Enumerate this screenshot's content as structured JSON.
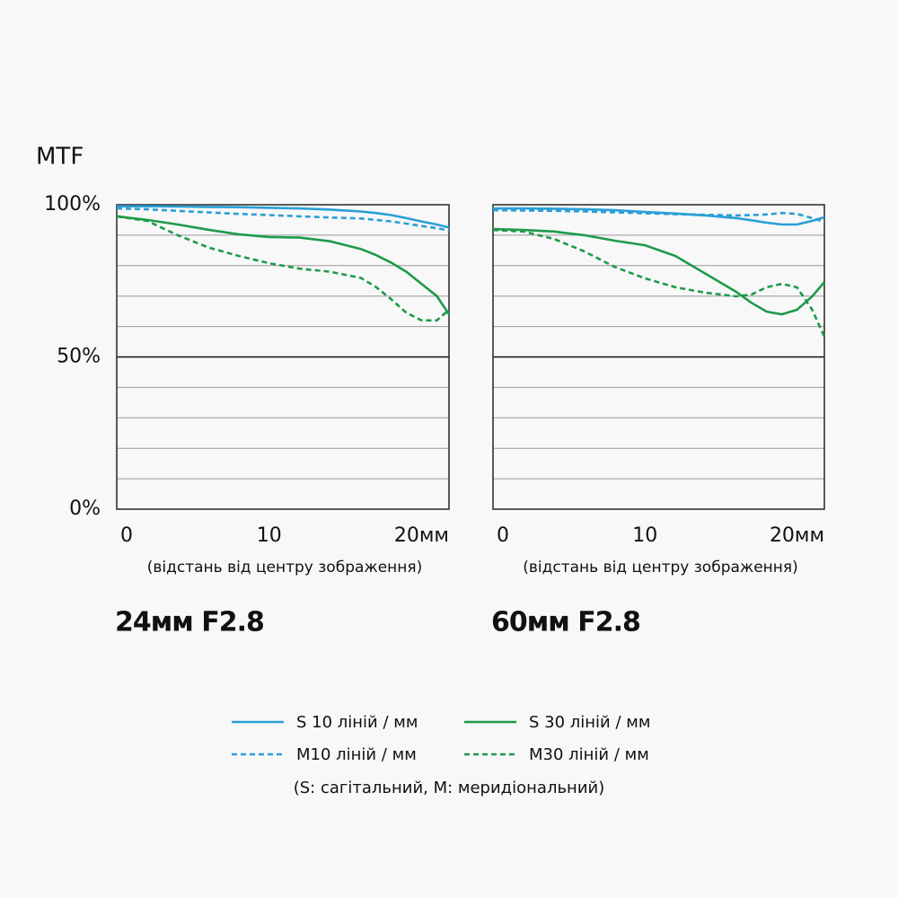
{
  "chart_data": [
    {
      "type": "line",
      "ylabel": "MTF",
      "title": "24мм F2.8",
      "xlabel": "(відстань від центру зображення)",
      "x": [
        0,
        2,
        4,
        6,
        8,
        10,
        12,
        14,
        16,
        17,
        18,
        19,
        20,
        21,
        21.8
      ],
      "series": [
        {
          "name": "S 10 ліній / мм",
          "color": "#2a9fd6",
          "dash": false,
          "values": [
            99.5,
            99.5,
            99.4,
            99.3,
            99.2,
            99,
            98.8,
            98.4,
            97.8,
            97.3,
            96.6,
            95.6,
            94.5,
            93.5,
            92.5
          ]
        },
        {
          "name": "M10 ліній / мм",
          "color": "#2a9fd6",
          "dash": true,
          "values": [
            98.8,
            98.5,
            98,
            97.5,
            97,
            96.6,
            96.2,
            95.8,
            95.5,
            95,
            94.5,
            93.8,
            93,
            92.3,
            91.5
          ]
        },
        {
          "name": "S 30 ліній / мм",
          "color": "#1e9a4a",
          "dash": false,
          "values": [
            96.2,
            95,
            93.5,
            91.8,
            90.3,
            89.4,
            89.2,
            88,
            85.5,
            83.5,
            81,
            78,
            74,
            70,
            64
          ]
        },
        {
          "name": "M30 ліній / мм",
          "color": "#1e9a4a",
          "dash": true,
          "values": [
            96.2,
            94.7,
            90,
            86,
            83.2,
            80.8,
            79,
            78,
            76,
            73,
            69,
            64.5,
            62,
            62,
            65.5
          ]
        }
      ],
      "xlim": [
        0,
        21.8
      ],
      "xticks": [
        0,
        10,
        {
          "value": 20,
          "label": "20мм"
        }
      ],
      "ylim": [
        0,
        100
      ],
      "yticks": [
        {
          "value": 100,
          "label": "100%"
        },
        {
          "value": 50,
          "label": "50%"
        },
        {
          "value": 0,
          "label": "0%"
        }
      ],
      "ygrid": [
        10,
        20,
        30,
        40,
        50,
        60,
        70,
        80,
        90
      ],
      "highlight_y": 50,
      "legend_note": "(S: сагітальний, M: меридіональний)"
    },
    {
      "type": "line",
      "title": "60мм F2.8",
      "xlabel": "(відстань від центру зображення)",
      "x": [
        0,
        2,
        4,
        6,
        8,
        10,
        12,
        14,
        16,
        17,
        18,
        19,
        20,
        21,
        21.8
      ],
      "series": [
        {
          "color": "#2a9fd6",
          "dash": false,
          "values": [
            98.8,
            98.8,
            98.7,
            98.5,
            98.2,
            97.6,
            97.1,
            96.5,
            95.6,
            94.9,
            94.1,
            93.5,
            93.5,
            94.7,
            95.9
          ]
        },
        {
          "color": "#2a9fd6",
          "dash": true,
          "values": [
            98.2,
            98.1,
            98,
            97.8,
            97.5,
            97.2,
            96.9,
            96.7,
            96.5,
            96.6,
            96.8,
            97.3,
            97,
            95.6,
            94.4
          ]
        },
        {
          "color": "#1e9a4a",
          "dash": false,
          "values": [
            92,
            91.7,
            91.2,
            90,
            88.2,
            86.7,
            83.2,
            77.3,
            71.4,
            67.8,
            64.9,
            64,
            65.5,
            69.9,
            74.6
          ]
        },
        {
          "color": "#1e9a4a",
          "dash": true,
          "values": [
            91.7,
            91.2,
            88.8,
            84.7,
            79.6,
            75.8,
            72.9,
            71.1,
            69.9,
            70.5,
            72.9,
            74,
            72.9,
            65.5,
            56.6
          ]
        }
      ],
      "xlim": [
        0,
        21.8
      ],
      "xticks": [
        0,
        10,
        {
          "value": 20,
          "label": "20мм"
        }
      ],
      "ylim": [
        0,
        100
      ],
      "ygrid": [
        10,
        20,
        30,
        40,
        50,
        60,
        70,
        80,
        90
      ],
      "highlight_y": 50
    }
  ]
}
